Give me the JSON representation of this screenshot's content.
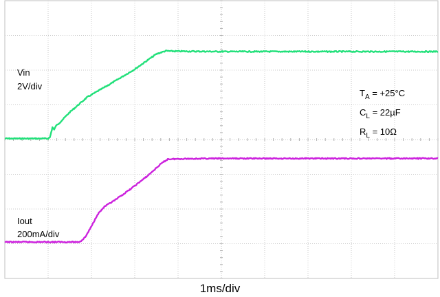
{
  "chart_data": {
    "type": "line",
    "title": "",
    "xlabel": "1ms/div",
    "xlim": [
      0,
      10
    ],
    "x_unit": "ms",
    "divisions": {
      "x": 10,
      "y": 8
    },
    "grid": true,
    "series": [
      {
        "name": "Vin",
        "scale": "2V/div",
        "color": "#22e07a",
        "unit": "V",
        "x": [
          0,
          1.0,
          1.04,
          1.1,
          1.14,
          1.18,
          1.22,
          1.5,
          1.9,
          2.4,
          3.0,
          3.5,
          3.72,
          3.86,
          5,
          7,
          9,
          10
        ],
        "y": [
          0,
          0,
          0.06,
          0.65,
          0.5,
          0.74,
          0.8,
          1.52,
          2.38,
          3.1,
          4.0,
          4.88,
          5.06,
          5.04,
          5.02,
          5.02,
          5.02,
          5.02
        ]
      },
      {
        "name": "Iout",
        "scale": "200mA/div",
        "color": "#cc22dd",
        "unit": "mA",
        "x": [
          0,
          1.7,
          1.76,
          1.86,
          2.0,
          2.14,
          2.3,
          2.55,
          2.9,
          3.3,
          3.6,
          3.76,
          4.2,
          5,
          7,
          9,
          10
        ],
        "y": [
          0,
          0,
          8,
          42,
          130,
          230,
          294,
          350,
          440,
          552,
          650,
          690,
          694,
          696,
          696,
          696,
          696
        ]
      }
    ],
    "annotations": [
      {
        "label": "Vin",
        "text": "2V/div"
      },
      {
        "label": "Iout",
        "text": "200mA/div"
      }
    ],
    "conditions": [
      {
        "main": "T",
        "sub": "A",
        "rest": " = +25°C"
      },
      {
        "main": "C",
        "sub": "L",
        "rest": " = 22µF"
      },
      {
        "main": "R",
        "sub": "L",
        "rest": " = 10Ω"
      }
    ]
  }
}
